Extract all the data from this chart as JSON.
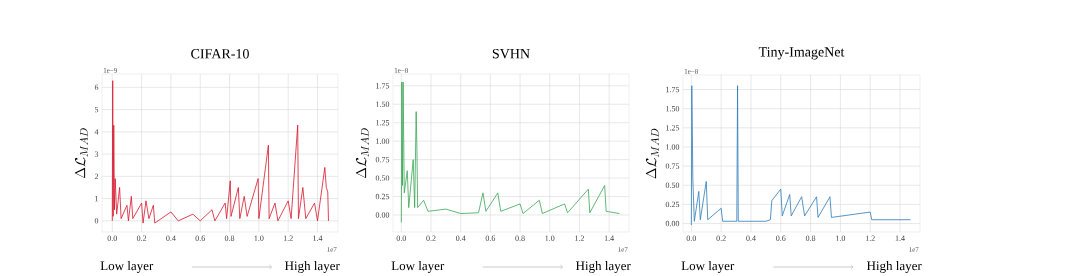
{
  "chart_data": [
    {
      "type": "line",
      "title": "CIFAR-10",
      "ylabel": "\\Delta\\mathcal{L}_{MAD}",
      "xlim": [
        -0.07,
        1.54
      ],
      "ylim": [
        -0.5,
        6.6
      ],
      "grid": true,
      "xticks": [
        {
          "value": 0,
          "label": "0.0"
        },
        {
          "value": 0.2,
          "label": "0.2"
        },
        {
          "value": 0.4,
          "label": "0.4"
        },
        {
          "value": 0.6,
          "label": "0.6"
        },
        {
          "value": 0.8,
          "label": "0.8"
        },
        {
          "value": 1.0,
          "label": "1.0"
        },
        {
          "value": 1.2,
          "label": "1.2"
        },
        {
          "value": 1.4,
          "label": "1.4"
        }
      ],
      "yticks": [
        0,
        1,
        2,
        3,
        4,
        5,
        6
      ],
      "annotations": [
        "1e−9",
        "1e7",
        "Low layer",
        "High layer"
      ],
      "series": [
        {
          "color": "#d7152c",
          "x": [
            0,
            0.003,
            0.006,
            0.01,
            0.015,
            0.02,
            0.03,
            0.05,
            0.06,
            0.1,
            0.11,
            0.13,
            0.14,
            0.2,
            0.21,
            0.23,
            0.25,
            0.28,
            0.29,
            0.4,
            0.45,
            0.55,
            0.6,
            0.68,
            0.7,
            0.77,
            0.78,
            0.805,
            0.81,
            0.86,
            0.87,
            0.9,
            0.92,
            0.995,
            1.0,
            1.065,
            1.07,
            1.11,
            1.13,
            1.2,
            1.22,
            1.265,
            1.27,
            1.3,
            1.32,
            1.38,
            1.4,
            1.45,
            1.46,
            1.47,
            1.475
          ],
          "values": [
            0,
            6.3,
            0.2,
            4.3,
            0.5,
            1.9,
            0.3,
            1.5,
            0.1,
            0.7,
            0,
            1.1,
            0.1,
            0.8,
            -0.1,
            0.9,
            0.1,
            0.7,
            -0.1,
            0.4,
            0,
            0.3,
            0,
            0.5,
            0,
            0.8,
            0.1,
            1.8,
            0.2,
            1.5,
            0.1,
            1.1,
            0.2,
            1.9,
            0.1,
            3.4,
            0.1,
            0.8,
            0,
            0.9,
            0.1,
            4.3,
            0.1,
            1.5,
            0.1,
            0.8,
            0,
            2.4,
            1.5,
            1.3,
            0
          ]
        }
      ]
    },
    {
      "type": "line",
      "title": "SVHN",
      "ylabel": "\\Delta\\mathcal{L}_{MAD}",
      "xlim": [
        -0.056,
        1.534
      ],
      "ylim": [
        -0.23,
        1.91
      ],
      "grid": true,
      "xticks": [
        {
          "value": 0,
          "label": "0.0"
        },
        {
          "value": 0.2,
          "label": "0.2"
        },
        {
          "value": 0.4,
          "label": "0.4"
        },
        {
          "value": 0.6,
          "label": "0.6"
        },
        {
          "value": 0.8,
          "label": "0.8"
        },
        {
          "value": 1.0,
          "label": "1.0"
        },
        {
          "value": 1.2,
          "label": "1.2"
        },
        {
          "value": 1.4,
          "label": "1.4"
        }
      ],
      "yticks": [
        {
          "value": 0,
          "label": "0.00"
        },
        {
          "value": 0.25,
          "label": "0.25"
        },
        {
          "value": 0.5,
          "label": "0.50"
        },
        {
          "value": 0.75,
          "label": "0.75"
        },
        {
          "value": 1.0,
          "label": "1.00"
        },
        {
          "value": 1.25,
          "label": "1.25"
        },
        {
          "value": 1.5,
          "label": "1.50"
        },
        {
          "value": 1.75,
          "label": "1.75"
        }
      ],
      "annotations": [
        "1e−8",
        "1e7",
        "Low layer",
        "High layer"
      ],
      "series": [
        {
          "color": "#3aa655",
          "x": [
            0,
            0.003,
            0.008,
            0.012,
            0.02,
            0.04,
            0.05,
            0.08,
            0.09,
            0.1,
            0.105,
            0.11,
            0.15,
            0.18,
            0.3,
            0.4,
            0.52,
            0.55,
            0.57,
            0.65,
            0.67,
            0.8,
            0.82,
            0.93,
            0.95,
            1.1,
            1.12,
            1.26,
            1.27,
            1.37,
            1.38,
            1.47
          ],
          "values": [
            -0.1,
            1.8,
            0.4,
            1.8,
            0.3,
            0.6,
            0.1,
            0.75,
            0.1,
            1.4,
            0.9,
            0.1,
            0.2,
            0.05,
            0.08,
            0.02,
            0.03,
            0.3,
            0.05,
            0.3,
            0.05,
            0.15,
            0.02,
            0.2,
            0.02,
            0.15,
            0.03,
            0.35,
            0.03,
            0.4,
            0.05,
            0.02
          ]
        }
      ]
    },
    {
      "type": "line",
      "title": "Tiny-ImageNet",
      "ylabel": "\\Delta\\mathcal{L}_{MAD}",
      "xlim": [
        -0.056,
        1.534
      ],
      "ylim": [
        -0.11,
        1.94
      ],
      "grid": true,
      "xticks": [
        {
          "value": 0,
          "label": "0.0"
        },
        {
          "value": 0.2,
          "label": "0.2"
        },
        {
          "value": 0.4,
          "label": "0.4"
        },
        {
          "value": 0.6,
          "label": "0.6"
        },
        {
          "value": 0.8,
          "label": "0.8"
        },
        {
          "value": 1.0,
          "label": "1.0"
        },
        {
          "value": 1.2,
          "label": "1.2"
        },
        {
          "value": 1.4,
          "label": "1.4"
        }
      ],
      "yticks": [
        {
          "value": 0,
          "label": "0.00"
        },
        {
          "value": 0.25,
          "label": "0.25"
        },
        {
          "value": 0.5,
          "label": "0.50"
        },
        {
          "value": 0.75,
          "label": "0.75"
        },
        {
          "value": 1.0,
          "label": "1.00"
        },
        {
          "value": 1.25,
          "label": "1.25"
        },
        {
          "value": 1.5,
          "label": "1.50"
        },
        {
          "value": 1.75,
          "label": "1.75"
        }
      ],
      "annotations": [
        "1e−8",
        "1e7",
        "Low layer",
        "High layer"
      ],
      "series": [
        {
          "color": "#2b7bba",
          "x": [
            0,
            0.003,
            0.006,
            0.01,
            0.02,
            0.05,
            0.06,
            0.1,
            0.11,
            0.2,
            0.21,
            0.305,
            0.31,
            0.315,
            0.5,
            0.53,
            0.54,
            0.6,
            0.61,
            0.66,
            0.67,
            0.74,
            0.76,
            0.84,
            0.85,
            0.93,
            0.94,
            1.2,
            1.21,
            1.47
          ],
          "values": [
            -0.02,
            1.8,
            1.3,
            0.58,
            0.03,
            0.42,
            0.05,
            0.55,
            0.05,
            0.2,
            0.03,
            0.03,
            1.8,
            0.03,
            0.03,
            0.05,
            0.3,
            0.45,
            0.1,
            0.38,
            0.1,
            0.35,
            0.1,
            0.35,
            0.08,
            0.35,
            0.08,
            0.15,
            0.05,
            0.05
          ]
        }
      ]
    }
  ]
}
